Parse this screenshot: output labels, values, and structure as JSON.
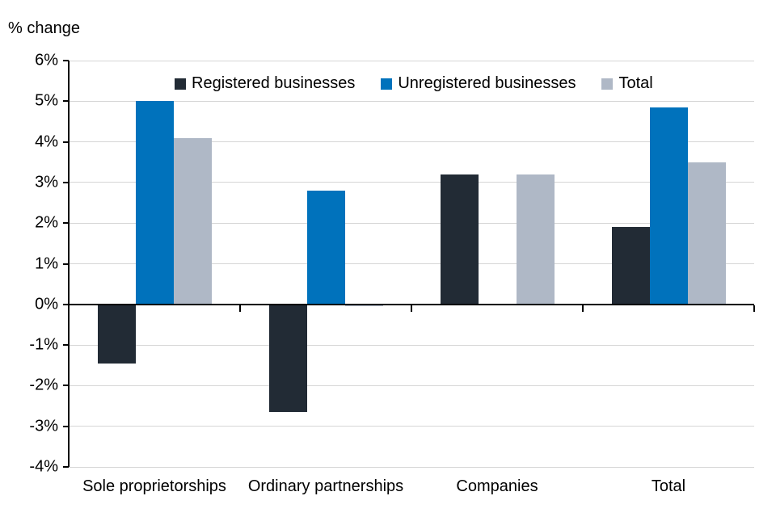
{
  "chart_data": {
    "type": "bar",
    "title": "% change",
    "ylabel": "% change",
    "xlabel": "",
    "categories": [
      "Sole proprietorships",
      "Ordinary partnerships",
      "Companies",
      "Total"
    ],
    "series": [
      {
        "name": "Registered businesses",
        "color": "#222b35",
        "values": [
          -1.45,
          -2.65,
          3.2,
          1.9
        ]
      },
      {
        "name": "Unregistered businesses",
        "color": "#0072bc",
        "values": [
          5.0,
          2.8,
          null,
          4.85
        ]
      },
      {
        "name": "Total",
        "color": "#afb8c6",
        "values": [
          4.1,
          -0.05,
          3.2,
          3.5
        ]
      }
    ],
    "ylim": [
      -4,
      6
    ],
    "ytick_step": 1,
    "ytick_suffix": "%",
    "grid": true,
    "gridline_color": "#d6d6d6",
    "axis_color": "#000000",
    "legend_position": "top-inside"
  }
}
